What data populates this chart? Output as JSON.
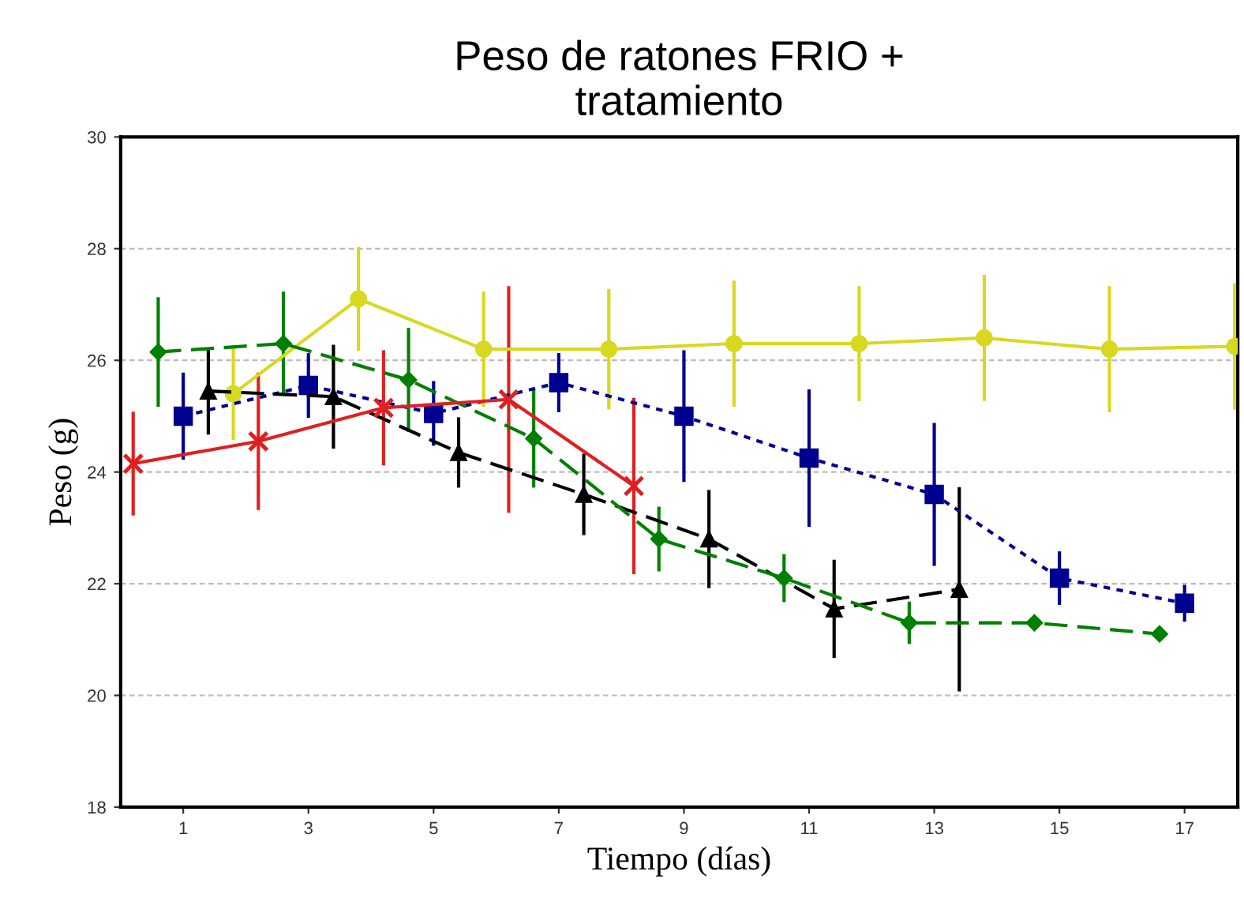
{
  "chart_data": {
    "type": "line",
    "title": "Peso de ratones FRIO +\ntratamiento",
    "xlabel": "Tiempo (días)",
    "ylabel": "Peso (g)",
    "xlim": [
      0,
      17.85
    ],
    "xticks": [
      1,
      3,
      5,
      7,
      9,
      11,
      13,
      15,
      17
    ],
    "ylim": [
      18,
      30
    ],
    "yticks": [
      18,
      20,
      22,
      24,
      26,
      28,
      30
    ],
    "grid": "y",
    "series": [
      {
        "color": "#d8d820",
        "marker": "circle",
        "line_style": "solid",
        "x": [
          1.8,
          3.8,
          5.8,
          7.8,
          9.8,
          11.8,
          13.8,
          15.8,
          17.8
        ],
        "values": [
          25.4,
          27.1,
          26.2,
          26.2,
          26.3,
          26.3,
          26.4,
          26.2,
          26.25
        ],
        "errors": [
          0.8,
          0.9,
          1.0,
          1.05,
          1.1,
          1.0,
          1.1,
          1.1,
          1.1
        ]
      },
      {
        "color": "#000090",
        "marker": "square",
        "line_style": "dotted",
        "x": [
          1,
          3,
          5,
          7,
          9,
          11,
          13,
          15,
          17
        ],
        "values": [
          25.0,
          25.55,
          25.05,
          25.6,
          25.0,
          24.25,
          23.6,
          22.1,
          21.65
        ],
        "errors": [
          0.75,
          0.55,
          0.55,
          0.5,
          1.15,
          1.2,
          1.25,
          0.45,
          0.3
        ]
      },
      {
        "color": "#000000",
        "marker": "triangle",
        "line_style": "dashed",
        "x": [
          1.4,
          3.4,
          5.4,
          7.4,
          9.4,
          11.4,
          13.4
        ],
        "values": [
          25.45,
          25.35,
          24.35,
          23.6,
          22.8,
          21.55,
          21.9
        ],
        "errors": [
          0.75,
          0.9,
          0.6,
          0.7,
          0.85,
          0.85,
          1.8
        ]
      },
      {
        "color": "#008000",
        "marker": "diamond",
        "line_style": "dashed",
        "x": [
          0.6,
          2.6,
          4.6,
          6.6,
          8.6,
          10.6,
          12.6,
          14.6,
          16.6
        ],
        "values": [
          26.15,
          26.3,
          25.65,
          24.6,
          22.8,
          22.1,
          21.3,
          21.3,
          21.1
        ],
        "errors": [
          0.95,
          0.9,
          0.9,
          0.85,
          0.55,
          0.4,
          0.35,
          null,
          null
        ]
      },
      {
        "color": "#e02020",
        "marker": "cross",
        "line_style": "solid",
        "x": [
          0.2,
          2.2,
          4.2,
          6.2,
          8.2
        ],
        "values": [
          24.15,
          24.55,
          25.15,
          25.3,
          23.75
        ],
        "errors": [
          0.9,
          1.2,
          1.0,
          2.0,
          1.55
        ]
      }
    ]
  }
}
